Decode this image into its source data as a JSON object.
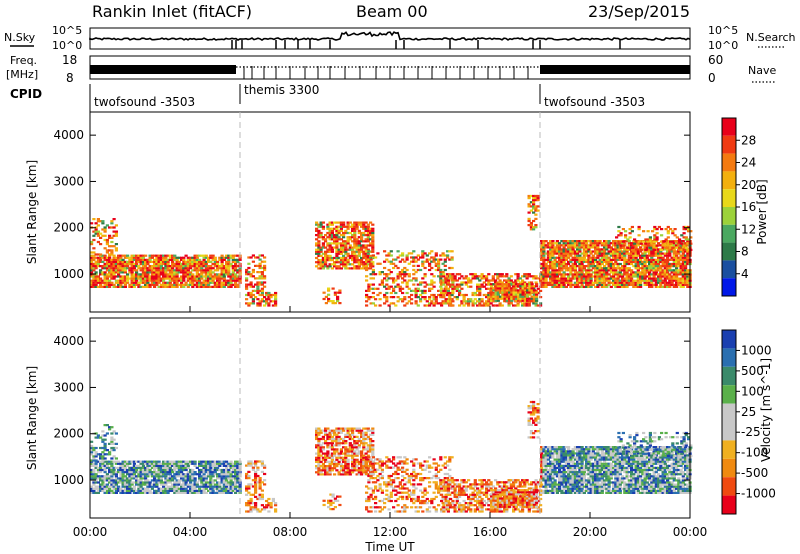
{
  "header": {
    "title": "Rankin Inlet (fitACF)",
    "beam": "Beam 00",
    "date": "23/Sep/2015"
  },
  "status_panels": {
    "nsky_label": "N.Sky",
    "nsky_ticks": [
      "10^5",
      "10^0"
    ],
    "nsearch_label": "N.Search",
    "nsearch_ticks": [
      "10^5",
      "10^0"
    ],
    "freq_label": "Freq.",
    "freq_unit": "[MHz]",
    "freq_ticks": [
      "18",
      "8"
    ],
    "nave_label": "Nave",
    "nave_ticks": [
      "60",
      "0"
    ],
    "cpid_label": "CPID",
    "cpid_segments": [
      {
        "name": "twofsound -3503",
        "start_hour": 0,
        "end_hour": 6
      },
      {
        "name": "themis 3300",
        "start_hour": 6,
        "end_hour": 18
      },
      {
        "name": "twofsound -3503",
        "start_hour": 18,
        "end_hour": 24
      }
    ]
  },
  "chart_data": [
    {
      "type": "heatmap",
      "title": "",
      "parameter": "Power",
      "xlabel": "",
      "ylabel": "Slant Range [km]",
      "xlim": [
        0,
        24
      ],
      "ylim": [
        180,
        4500
      ],
      "yticks": [
        "1000",
        "2000",
        "3000",
        "4000"
      ],
      "colorbar": {
        "label": "Power [dB]",
        "ticks": [
          "28",
          "24",
          "20",
          "16",
          "12",
          "8",
          "4"
        ],
        "colors": [
          "#e8001a",
          "#f03a12",
          "#f47a10",
          "#f3b00e",
          "#e8d81a",
          "#9cd23a",
          "#4aa860",
          "#2d7a48",
          "#1a4fa0",
          "#0018e8"
        ]
      }
    },
    {
      "type": "heatmap",
      "title": "",
      "parameter": "Velocity",
      "xlabel": "Time UT",
      "ylabel": "Slant Range [km]",
      "xlim": [
        0,
        24
      ],
      "ylim": [
        180,
        4500
      ],
      "yticks": [
        "1000",
        "2000",
        "3000",
        "4000"
      ],
      "xticks": [
        "00:00",
        "04:00",
        "08:00",
        "12:00",
        "16:00",
        "20:00",
        "00:00"
      ],
      "colorbar": {
        "label": "Velocity [m s^-1]",
        "ticks": [
          "1000",
          "500",
          "100",
          "25",
          "-25",
          "-100",
          "-500",
          "-1000"
        ],
        "colors": [
          "#1a3fb0",
          "#2a6fb0",
          "#3a8a6a",
          "#5ab04a",
          "#c8c8c8",
          "#c8c8c8",
          "#f0b020",
          "#f08a10",
          "#f04a10",
          "#e8001a"
        ]
      }
    }
  ]
}
